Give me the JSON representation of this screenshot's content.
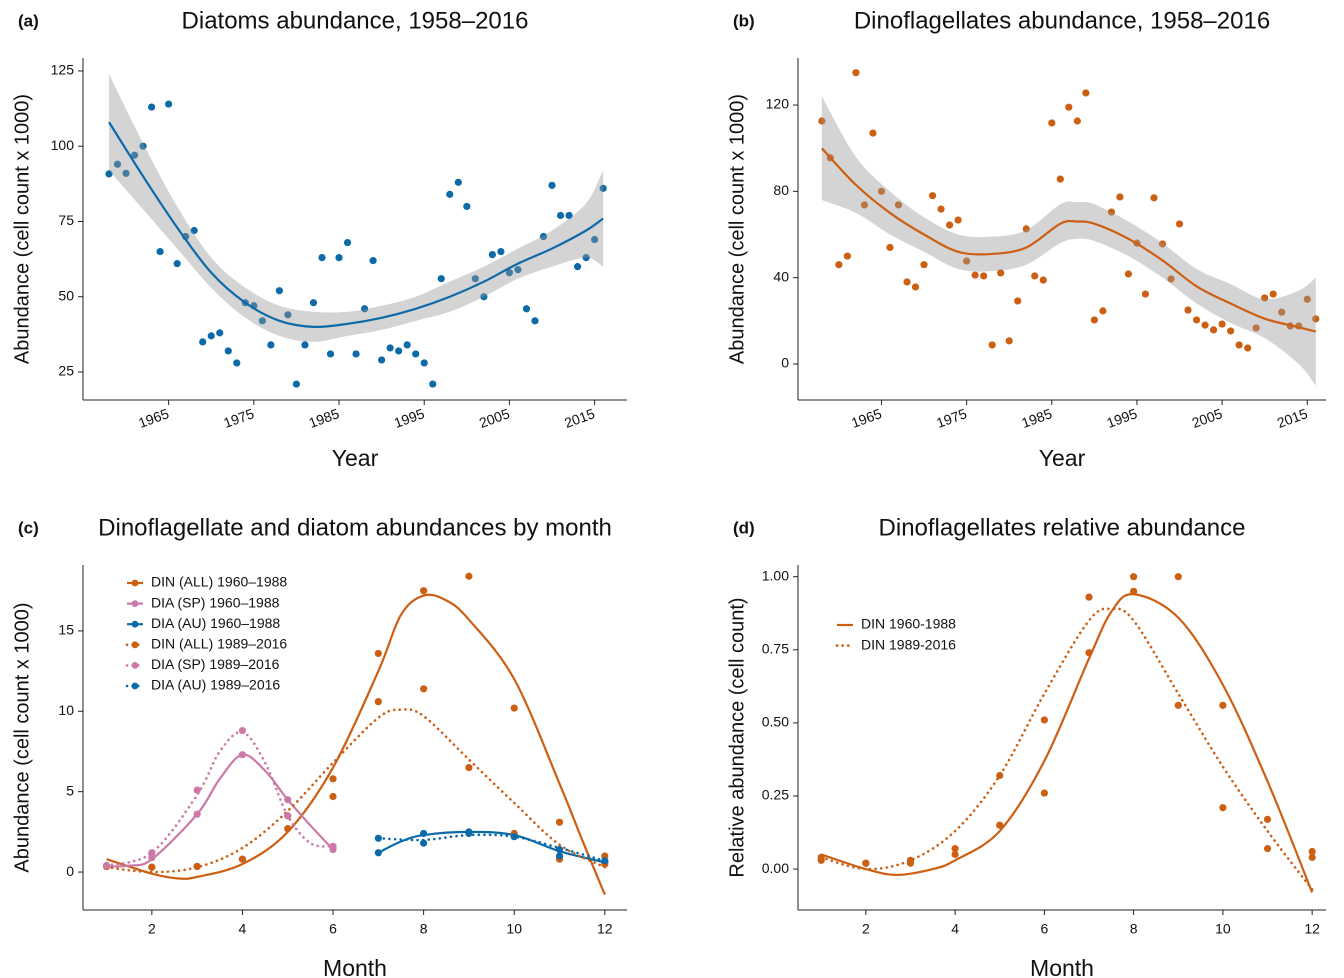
{
  "chart_data": [
    {
      "type": "scatter",
      "panel_label": "(a)",
      "title": "Diatoms abundance, 1958–2016",
      "x_label": "Year",
      "y_label": "Abundance (cell count x 1000)",
      "xlim": [
        1954.95,
        2018.8
      ],
      "ylim": [
        15.7,
        129.3
      ],
      "xticks": [
        1965,
        1975,
        1985,
        1995,
        2005,
        2015
      ],
      "yticks": [
        25,
        50,
        75,
        100,
        125
      ],
      "ribbon_color": "#999999",
      "series": [
        {
          "color": "#0d6aa8",
          "x": [
            1958,
            1959,
            1960,
            1961,
            1962,
            1963,
            1964,
            1965,
            1966,
            1967,
            1968,
            1969,
            1970,
            1971,
            1972,
            1973,
            1974,
            1975,
            1976,
            1977,
            1978,
            1979,
            1980,
            1981,
            1982,
            1983,
            1984,
            1985,
            1986,
            1987,
            1988,
            1989,
            1990,
            1991,
            1992,
            1993,
            1994,
            1995,
            1996,
            1997,
            1998,
            1999,
            2000,
            2001,
            2002,
            2003,
            2004,
            2005,
            2006,
            2007,
            2008,
            2009,
            2010,
            2011,
            2012,
            2013,
            2014,
            2015,
            2016
          ],
          "values": [
            90.8,
            94,
            91,
            97,
            100,
            113,
            65,
            114,
            61,
            70,
            72,
            35,
            37,
            38,
            32,
            28,
            48,
            47,
            42,
            34,
            52,
            44,
            21,
            34,
            48,
            63,
            31,
            63,
            68,
            31,
            46,
            62,
            29,
            33,
            32,
            34,
            31,
            28,
            21,
            56,
            84,
            88,
            80,
            56,
            50,
            64,
            65,
            58,
            59,
            46,
            42,
            70,
            87,
            77,
            77,
            60,
            63,
            69,
            86
          ],
          "fit_x": [
            1958,
            1962,
            1966,
            1970,
            1974,
            1978,
            1982,
            1986,
            1990,
            1994,
            1998,
            2002,
            2006,
            2010,
            2014,
            2016
          ],
          "fit_values": [
            108,
            90,
            73,
            58,
            48,
            42,
            40,
            41,
            43,
            46,
            50,
            55,
            61,
            66,
            72,
            76
          ],
          "fit_lower": [
            92,
            79,
            66,
            53,
            43,
            37,
            35,
            37,
            39,
            42,
            45,
            50,
            56,
            60,
            63,
            60
          ],
          "fit_upper": [
            124,
            101,
            80,
            63,
            53,
            47,
            45,
            45,
            47,
            50,
            55,
            60,
            66,
            72,
            81,
            92
          ]
        }
      ]
    },
    {
      "type": "scatter",
      "panel_label": "(b)",
      "title": "Dinoflagellates abundance, 1958–2016",
      "x_label": "Year",
      "y_label": "Abundance (cell count x 1000)",
      "xlim": [
        1955.2,
        2017.2
      ],
      "ylim": [
        -16.7,
        141.8
      ],
      "xticks": [
        1965,
        1975,
        1985,
        1995,
        2005,
        2015
      ],
      "yticks": [
        0,
        40,
        80,
        120
      ],
      "ribbon_color": "#999999",
      "series": [
        {
          "color": "#cc5f12",
          "x": [
            1958,
            1959,
            1960,
            1961,
            1962,
            1963,
            1964,
            1965,
            1966,
            1967,
            1968,
            1969,
            1970,
            1971,
            1972,
            1973,
            1974,
            1975,
            1976,
            1977,
            1978,
            1979,
            1980,
            1981,
            1982,
            1983,
            1984,
            1985,
            1986,
            1987,
            1988,
            1989,
            1990,
            1991,
            1992,
            1993,
            1994,
            1995,
            1996,
            1997,
            1998,
            1999,
            2000,
            2001,
            2002,
            2003,
            2004,
            2005,
            2006,
            2007,
            2008,
            2009,
            2010,
            2011,
            2012,
            2013,
            2014,
            2015,
            2016
          ],
          "values": [
            112.6,
            95.5,
            46,
            50,
            135,
            73.7,
            107,
            80,
            54,
            73.7,
            38,
            35.7,
            46,
            78,
            71.8,
            64.4,
            66.7,
            47.7,
            41.2,
            40.8,
            8.8,
            42.2,
            10.7,
            29.2,
            62.6,
            40.8,
            38.9,
            111.7,
            85.7,
            119,
            112.6,
            125.6,
            20.4,
            24.6,
            70.4,
            77.4,
            41.7,
            56,
            32.4,
            77,
            55.6,
            39.4,
            64.9,
            25,
            20.4,
            18,
            15.8,
            18.5,
            15.3,
            8.8,
            7.4,
            16.7,
            30.6,
            32.4,
            24,
            17.6,
            17.6,
            30,
            20.9
          ],
          "fit_x": [
            1958,
            1962,
            1966,
            1970,
            1974,
            1978,
            1982,
            1986,
            1988,
            1990,
            1994,
            1998,
            2002,
            2006,
            2010,
            2014,
            2016
          ],
          "fit_values": [
            100,
            83,
            70,
            60,
            52,
            51,
            54,
            65,
            66,
            65,
            58,
            48,
            36,
            28,
            21,
            17,
            15
          ],
          "fit_lower": [
            76,
            70,
            60,
            52,
            44,
            43,
            46,
            56,
            58,
            57,
            50,
            40,
            28,
            19,
            12,
            0,
            -10
          ],
          "fit_upper": [
            124,
            96,
            80,
            68,
            60,
            59,
            62,
            74,
            75,
            74,
            66,
            56,
            44,
            37,
            30,
            34,
            40
          ]
        }
      ]
    },
    {
      "type": "line",
      "panel_label": "(c)",
      "title": "Dinoflagellate and diatom abundances by month",
      "x_label": "Month",
      "y_label": "Abundance (cell count x 1000)",
      "xlim": [
        0.48,
        12.49
      ],
      "ylim": [
        -2.36,
        19.1
      ],
      "xticks": [
        2,
        4,
        6,
        8,
        10,
        12
      ],
      "yticks": [
        0,
        5,
        10,
        15
      ],
      "legend": "upper left",
      "legend_markers": true,
      "series": [
        {
          "name": "DIN (ALL) 1960–1988",
          "color": "#cc5f12",
          "style": "solid",
          "x": [
            1,
            2,
            3,
            4,
            5,
            6,
            7,
            8,
            9,
            10,
            11,
            12
          ],
          "values": [
            0.35,
            0.3,
            0.35,
            0.8,
            2.7,
            5.8,
            13.6,
            17.5,
            18.4,
            10.2,
            0.8,
            1.0
          ],
          "fit_x": [
            1,
            2,
            2.6,
            3,
            4,
            5,
            6,
            7,
            7.5,
            8,
            8.5,
            9,
            10,
            11,
            11.5,
            12
          ],
          "fit_values": [
            0.8,
            -0.1,
            -0.4,
            -0.3,
            0.5,
            2.5,
            6.5,
            12.5,
            16,
            17.2,
            16.9,
            15.7,
            12,
            5.5,
            2,
            -1.4
          ]
        },
        {
          "name": "DIA (SP) 1960–1988",
          "color": "#cc79a7",
          "style": "solid",
          "x": [
            1,
            2,
            3,
            4,
            5,
            6
          ],
          "values": [
            0.4,
            0.9,
            3.6,
            7.3,
            4.5,
            1.4
          ],
          "fit_x": [
            1,
            1.5,
            2,
            3,
            3.5,
            4,
            4.5,
            5,
            5.5,
            6
          ],
          "fit_values": [
            0.35,
            0.4,
            0.8,
            3.6,
            5.8,
            7.3,
            6.3,
            4.5,
            2.9,
            1.4
          ]
        },
        {
          "name": "DIA (AU) 1960–1988",
          "color": "#0d6aa8",
          "style": "solid",
          "x": [
            7,
            8,
            9,
            10,
            11,
            12
          ],
          "values": [
            1.2,
            2.4,
            2.5,
            2.3,
            1.0,
            0.6
          ],
          "fit_x": [
            7,
            7.5,
            8,
            9,
            10,
            11,
            12
          ],
          "fit_values": [
            1.2,
            1.9,
            2.3,
            2.5,
            2.3,
            1.3,
            0.6
          ]
        },
        {
          "name": "DIN (ALL) 1989–2016",
          "color": "#cc5f12",
          "style": "dotted",
          "x": [
            1,
            2,
            3,
            4,
            5,
            6,
            7,
            8,
            9,
            10,
            11,
            12
          ],
          "values": [
            0.35,
            0.3,
            0.35,
            0.8,
            3.5,
            4.7,
            10.6,
            11.4,
            6.5,
            2.4,
            3.1,
            0.5
          ],
          "fit_x": [
            1,
            2,
            3,
            4,
            5,
            6,
            7,
            7.5,
            8,
            9,
            10,
            11,
            12
          ],
          "fit_values": [
            0.3,
            0,
            0.3,
            1.5,
            3.8,
            6.8,
            9.6,
            10.1,
            9.7,
            7,
            4.3,
            1.7,
            0.3
          ]
        },
        {
          "name": "DIA (SP) 1989–2016",
          "color": "#cc79a7",
          "style": "dotted",
          "x": [
            1,
            2,
            3,
            4,
            5,
            6
          ],
          "values": [
            0.4,
            1.2,
            5.1,
            8.8,
            3.5,
            1.6
          ],
          "fit_x": [
            1,
            2,
            3,
            3.5,
            4,
            4.5,
            5,
            5.5,
            6
          ],
          "fit_values": [
            0.4,
            1.2,
            4.8,
            7.5,
            8.7,
            6.8,
            3.5,
            1.8,
            1.6
          ]
        },
        {
          "name": "DIA (AU) 1989–2016",
          "color": "#0d6aa8",
          "style": "dotted",
          "x": [
            7,
            8,
            9,
            10,
            11,
            12
          ],
          "values": [
            2.1,
            1.8,
            2.4,
            2.2,
            1.4,
            0.7
          ],
          "fit_x": [
            7,
            8,
            9,
            10,
            11,
            12
          ],
          "fit_values": [
            2.1,
            2.0,
            2.3,
            2.2,
            1.5,
            0.7
          ]
        }
      ]
    },
    {
      "type": "line",
      "panel_label": "(d)",
      "title": "Dinoflagellates relative abundance",
      "x_label": "Month",
      "y_label": "Relative abundance (cell count)",
      "xlim": [
        0.48,
        12.31
      ],
      "ylim": [
        -0.14,
        1.04
      ],
      "xticks": [
        2,
        4,
        6,
        8,
        10,
        12
      ],
      "yticks": [
        {
          "value": 0,
          "label": "0.00"
        },
        0.25,
        {
          "value": 0.5,
          "label": "0.50"
        },
        0.75,
        {
          "value": 1,
          "label": "1.00"
        }
      ],
      "legend": "upper left",
      "legend_markers": false,
      "series": [
        {
          "name": "DIN 1960-1988",
          "color": "#cc5f12",
          "style": "solid",
          "x": [
            1,
            2,
            3,
            4,
            5,
            6,
            7,
            8,
            9,
            10,
            11,
            12
          ],
          "values": [
            0.03,
            0.02,
            0.02,
            0.05,
            0.15,
            0.26,
            0.74,
            1.0,
            1.0,
            0.56,
            0.07,
            0.04
          ],
          "fit_x": [
            1,
            2,
            2.7,
            3.5,
            4,
            5,
            6,
            7,
            7.5,
            8,
            9,
            10,
            11,
            12
          ],
          "fit_values": [
            0.05,
            0.0,
            -0.02,
            0.0,
            0.03,
            0.13,
            0.37,
            0.72,
            0.88,
            0.94,
            0.86,
            0.63,
            0.3,
            -0.08
          ]
        },
        {
          "name": "DIN 1989-2016",
          "color": "#cc5f12",
          "style": "dotted",
          "x": [
            1,
            2,
            3,
            4,
            5,
            6,
            7,
            8,
            9,
            10,
            11,
            12
          ],
          "values": [
            0.04,
            0.02,
            0.03,
            0.07,
            0.32,
            0.51,
            0.93,
            0.95,
            0.56,
            0.21,
            0.17,
            0.06
          ],
          "fit_x": [
            1,
            2,
            3,
            4,
            5,
            6,
            7,
            7.5,
            8,
            9,
            10,
            11,
            12
          ],
          "fit_values": [
            0.04,
            0.0,
            0.03,
            0.13,
            0.32,
            0.6,
            0.85,
            0.89,
            0.85,
            0.6,
            0.35,
            0.13,
            -0.07
          ]
        }
      ]
    }
  ]
}
